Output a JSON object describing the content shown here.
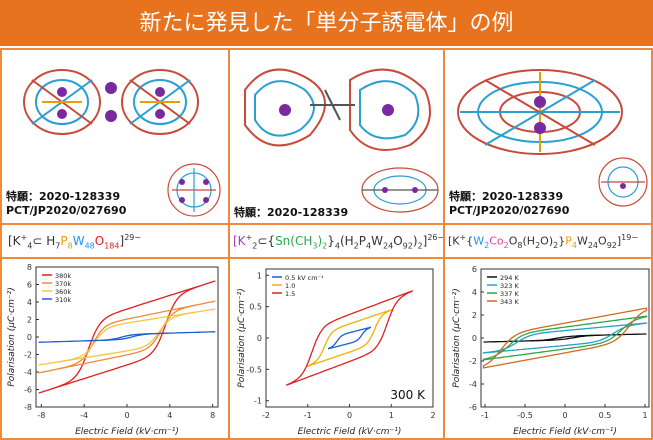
{
  "title": "新たに発見した「単分子誘電体」の例",
  "patents": {
    "p1_line1": "特願：2020-128339",
    "p1_line2": "PCT/JP2020/027690",
    "p2_line1": "特願：2020-128339",
    "p3_line1": "特願：2020-128339",
    "p3_line2": "PCT/JP2020/027690"
  },
  "formulas": {
    "f1": [
      "[K",
      "+",
      "4",
      "⊂ H",
      "7",
      "P",
      "8",
      "W",
      "48",
      "O",
      "184",
      "]",
      "29−"
    ],
    "f2": [
      "[K",
      "+",
      "2",
      "⊂{",
      "Sn(CH",
      "3",
      ")",
      "2",
      "}",
      "4",
      "(H",
      "2",
      "P",
      "4",
      "W",
      "24",
      "O",
      "92",
      ")",
      "2",
      "]",
      "26−"
    ],
    "f3": [
      "[K",
      "+",
      "{",
      "W",
      "2",
      "Co",
      "2",
      "O",
      "8",
      "(H",
      "2",
      "O)",
      "2",
      "}",
      "P",
      "4",
      "W",
      "24",
      "O",
      "92",
      "]",
      "19−"
    ]
  },
  "colors": {
    "title_bg": "#e8731f",
    "border": "#f08a3a"
  },
  "chart_data": [
    {
      "type": "line",
      "xlabel": "Electric Field (kV·cm⁻¹)",
      "ylabel": "Polarisation (μC·cm⁻²)",
      "xlim": [
        -8.5,
        8.5
      ],
      "ylim": [
        -8,
        8
      ],
      "xticks": [
        -8,
        -4,
        0,
        4,
        8
      ],
      "yticks": [
        -8,
        -6,
        -4,
        -2,
        0,
        2,
        4,
        6,
        8
      ],
      "legend": "top-left",
      "series": [
        {
          "name": "380k",
          "color": "#e02020",
          "pmax": 6.4,
          "coercive": 3.6
        },
        {
          "name": "370k",
          "color": "#f08a3a",
          "pmax": 4.1,
          "coercive": 3.2
        },
        {
          "name": "360k",
          "color": "#f5c542",
          "pmax": 3.2,
          "coercive": 3.0
        },
        {
          "name": "310k",
          "color": "#1e5fd0",
          "pmax": 0.6,
          "coercive": 0.5
        }
      ]
    },
    {
      "type": "line",
      "xlabel": "Electric Field (kV·cm⁻¹)",
      "ylabel": "Polarisation (μC·cm⁻²)",
      "xlim": [
        -2,
        2
      ],
      "ylim": [
        -1.1,
        1.1
      ],
      "xticks": [
        -2,
        -1,
        0,
        1,
        2
      ],
      "yticks": [
        -1.0,
        -0.5,
        0.0,
        0.5,
        1.0
      ],
      "legend": "top-left",
      "annotation": "300 K",
      "series": [
        {
          "name": "0.5 kV cm⁻¹",
          "color": "#1e5fd0",
          "pmax": 0.17,
          "emax": 0.5
        },
        {
          "name": "1.0",
          "color": "#f5b000",
          "pmax": 0.45,
          "emax": 1.0
        },
        {
          "name": "1.5",
          "color": "#e02020",
          "pmax": 0.75,
          "emax": 1.5
        }
      ]
    },
    {
      "type": "line",
      "xlabel": "Electric Field (kV·cm⁻¹)",
      "ylabel": "Polarisation (μC·cm⁻²)",
      "xlim": [
        -1.05,
        1.05
      ],
      "ylim": [
        -6,
        6
      ],
      "xticks": [
        -1.0,
        -0.5,
        0.0,
        0.5,
        1.0
      ],
      "yticks": [
        -6,
        -4,
        -2,
        0,
        2,
        4,
        6
      ],
      "legend": "top-left",
      "series": [
        {
          "name": "294 K",
          "color": "#111111",
          "pmax": 0.35,
          "coercive": 0.1
        },
        {
          "name": "323 K",
          "color": "#29a0c8",
          "pmax": 1.3,
          "coercive": 0.6
        },
        {
          "name": "337 K",
          "color": "#2aa84a",
          "pmax": 1.9,
          "coercive": 0.7
        },
        {
          "name": "343 K",
          "color": "#d2691e",
          "pmax": 2.6,
          "coercive": 0.8
        }
      ]
    }
  ]
}
